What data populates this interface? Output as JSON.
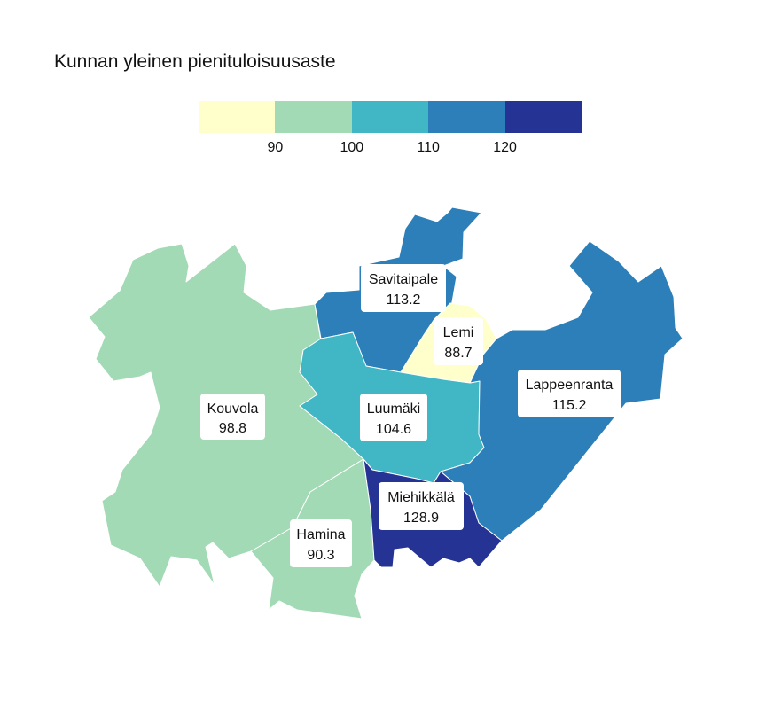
{
  "title": "Kunnan yleinen pienituloisuusaste",
  "legend": {
    "bins": [
      "#ffffcc",
      "#a1dab4",
      "#41b6c4",
      "#2c7fb8",
      "#253494"
    ],
    "ticks": [
      "90",
      "100",
      "110",
      "120"
    ]
  },
  "municipalities": [
    {
      "name": "Kouvola",
      "value": "98.8",
      "color": "#a1dab4"
    },
    {
      "name": "Hamina",
      "value": "90.3",
      "color": "#a1dab4"
    },
    {
      "name": "Savitaipale",
      "value": "113.2",
      "color": "#2c7fb8"
    },
    {
      "name": "Lemi",
      "value": "88.7",
      "color": "#ffffcc"
    },
    {
      "name": "Luumäki",
      "value": "104.6",
      "color": "#41b6c4"
    },
    {
      "name": "Lappeenranta",
      "value": "115.2",
      "color": "#2c7fb8"
    },
    {
      "name": "Miehikkälä",
      "value": "128.9",
      "color": "#253494"
    }
  ]
}
